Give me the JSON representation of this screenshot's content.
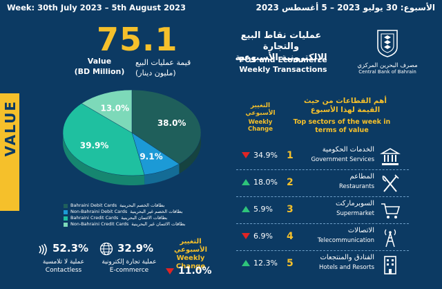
{
  "header": {
    "week_en": "Week: 30th July 2023 – 5th August 2023",
    "week_ar": "الأسبوع: 30 يوليو 2023 – 5 أغسطس 2023"
  },
  "value_band": "VALUE",
  "summary": {
    "value": "75.1",
    "label_ar_1": "قيمة عمليات البيع",
    "label_ar_2": "(مليون دينار)",
    "label_en_1": "Value",
    "label_en_2": "(BD Million)"
  },
  "chart_data": {
    "type": "pie",
    "slices": [
      {
        "name_en": "Bahraini Debit Cards",
        "name_ar": "بطاقات الخصم البحرينية",
        "value": 38.0,
        "label": "38.0%",
        "color": "#1f5f5b"
      },
      {
        "name_en": "Non-Bahraini Debit Cards",
        "name_ar": "بطاقات الخصم غير البحرينية",
        "value": 9.1,
        "label": "9.1%",
        "color": "#1c9ad6"
      },
      {
        "name_en": "Bahraini Credit Cards",
        "name_ar": "بطاقات الائتمان البحرينية",
        "value": 39.9,
        "label": "39.9%",
        "color": "#1fc0a0"
      },
      {
        "name_en": "Non-Bahraini Credit Cards",
        "name_ar": "بطاقات الائتمان غير البحرينية",
        "value": 13.0,
        "label": "13.0%",
        "color": "#7dd9b9"
      }
    ]
  },
  "metrics": {
    "contactless": {
      "value": "52.3%",
      "ar": "عملية لا تلامسية",
      "en": "Contactless",
      "icon": "contactless-icon"
    },
    "ecommerce": {
      "value": "32.9%",
      "ar": "عملية تجارة إلكترونية",
      "en": "E-commerce",
      "icon": "globe-icon"
    },
    "weekly_change": {
      "ar": "التغيير الأسبوعي",
      "en": "Weekly Change",
      "value": "11.0%",
      "direction": "down"
    }
  },
  "title": {
    "ar_1": "عمليات نقاط البيع والتجارة",
    "ar_2": "الإلكترونية الأسبوعية",
    "en_1": "POS and Ecommerce",
    "en_2": "Weekly Transactions"
  },
  "bank": {
    "ar": "مصرف البحرين المركزي",
    "en": "Central Bank of Bahrain"
  },
  "sectors_header": {
    "ar_1": "أهم القطاعات من حيث",
    "ar_2": "القيمة لهذا الأسبوع",
    "en_1": "Top sectors of the week in",
    "en_2": "terms of value",
    "change_ar_1": "التغيير",
    "change_ar_2": "الأسبوعي",
    "change_en_1": "Weekly",
    "change_en_2": "Change"
  },
  "sectors": [
    {
      "rank": "1",
      "ar": "الخدمات الحكومية",
      "en": "Government Services",
      "change": "34.9%",
      "direction": "down",
      "icon": "government-building-icon"
    },
    {
      "rank": "2",
      "ar": "المطاعم",
      "en": "Restaurants",
      "change": "18.0%",
      "direction": "up",
      "icon": "fork-knife-icon"
    },
    {
      "rank": "3",
      "ar": "السوبرماركت",
      "en": "Supermarket",
      "change": "5.9%",
      "direction": "up",
      "icon": "shopping-cart-icon"
    },
    {
      "rank": "4",
      "ar": "الاتصالات",
      "en": "Telecommunication",
      "change": "6.9%",
      "direction": "down",
      "icon": "antenna-tower-icon"
    },
    {
      "rank": "5",
      "ar": "الفنادق والمنتجعات",
      "en": "Hotels and Resorts",
      "change": "12.3%",
      "direction": "up",
      "icon": "hotel-icon"
    }
  ]
}
